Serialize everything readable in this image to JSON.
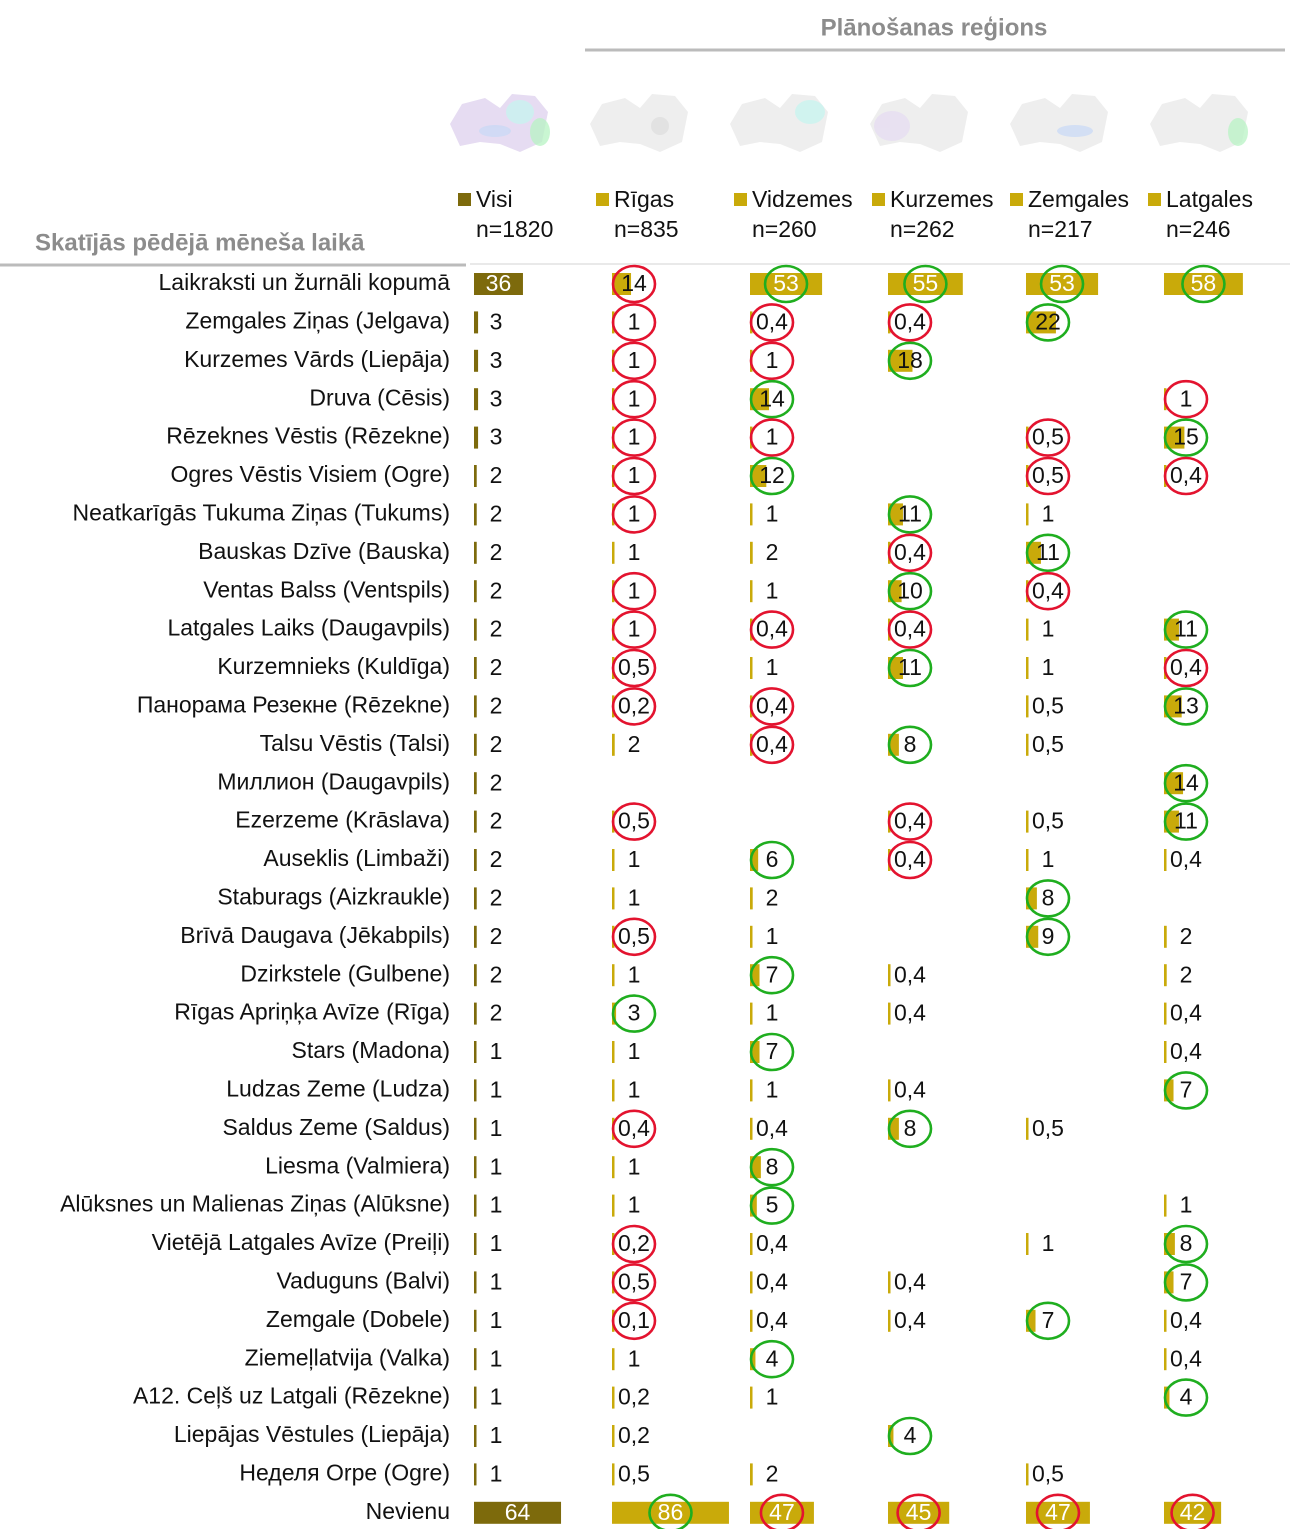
{
  "chart_data": {
    "type": "bar-table",
    "title": "Plānošanas reģions",
    "row_header": "Skatījās pēdējā mēneša laikā",
    "categories": [
      "Laikraksti un žurnāli kopumā",
      "Zemgales Ziņas (Jelgava)",
      "Kurzemes Vārds (Liepāja)",
      "Druva (Cēsis)",
      "Rēzeknes Vēstis (Rēzekne)",
      "Ogres Vēstis Visiem (Ogre)",
      "Neatkarīgās Tukuma Ziņas (Tukums)",
      "Bauskas Dzīve (Bauska)",
      "Ventas Balss (Ventspils)",
      "Latgales Laiks (Daugavpils)",
      "Kurzemnieks (Kuldīga)",
      "Панорама Резекне (Rēzekne)",
      "Talsu Vēstis (Talsi)",
      "Миллион (Daugavpils)",
      "Ezerzeme (Krāslava)",
      "Auseklis (Limbaži)",
      "Staburags (Aizkraukle)",
      "Brīvā Daugava (Jēkabpils)",
      "Dzirkstele (Gulbene)",
      "Rīgas Apriņķa Avīze (Rīga)",
      "Stars (Madona)",
      "Ludzas Zeme (Ludza)",
      "Saldus Zeme (Saldus)",
      "Liesma (Valmiera)",
      "Alūksnes un Malienas Ziņas (Alūksne)",
      "Vietējā Latgales Avīze (Preiļi)",
      "Vaduguns (Balvi)",
      "Zemgale (Dobele)",
      "Ziemeļlatvija (Valka)",
      "A12. Ceļš uz Latgali (Rēzekne)",
      "Liepājas Vēstules (Liepāja)",
      "Неделя Orpe (Ogre)",
      "Nevienu"
    ],
    "significance_colors": {
      "up": "#1fae1f",
      "down": "#e3132f"
    },
    "series": [
      {
        "name": "Visi",
        "n_label": "n=1820",
        "color": "#7d6a0c",
        "values": [
          36,
          3,
          3,
          3,
          3,
          2,
          2,
          2,
          2,
          2,
          2,
          2,
          2,
          2,
          2,
          2,
          2,
          2,
          2,
          2,
          1,
          1,
          1,
          1,
          1,
          1,
          1,
          1,
          1,
          1,
          1,
          1,
          64
        ],
        "value_labels": [
          "36",
          "3",
          "3",
          "3",
          "3",
          "2",
          "2",
          "2",
          "2",
          "2",
          "2",
          "2",
          "2",
          "2",
          "2",
          "2",
          "2",
          "2",
          "2",
          "2",
          "1",
          "1",
          "1",
          "1",
          "1",
          "1",
          "1",
          "1",
          "1",
          "1",
          "1",
          "1",
          "64"
        ]
      },
      {
        "name": "Rīgas",
        "n_label": "n=835",
        "color": "#c9aa0a",
        "values": [
          14,
          1,
          1,
          1,
          1,
          1,
          1,
          1,
          1,
          1,
          0.5,
          0.2,
          2,
          null,
          0.5,
          1,
          1,
          0.5,
          1,
          3,
          1,
          1,
          0.4,
          1,
          1,
          0.2,
          0.5,
          0.1,
          1,
          0.2,
          0.2,
          0.5,
          86
        ],
        "value_labels": [
          "14",
          "1",
          "1",
          "1",
          "1",
          "1",
          "1",
          "1",
          "1",
          "1",
          "0,5",
          "0,2",
          "2",
          null,
          "0,5",
          "1",
          "1",
          "0,5",
          "1",
          "3",
          "1",
          "1",
          "0,4",
          "1",
          "1",
          "0,2",
          "0,5",
          "0,1",
          "1",
          "0,2",
          "0,2",
          "0,5",
          "86"
        ],
        "significance": [
          "down",
          "down",
          "down",
          "down",
          "down",
          "down",
          "down",
          null,
          "down",
          "down",
          "down",
          "down",
          null,
          null,
          "down",
          null,
          null,
          "down",
          null,
          "up",
          null,
          null,
          "down",
          null,
          null,
          "down",
          "down",
          "down",
          null,
          null,
          null,
          null,
          "up"
        ]
      },
      {
        "name": "Vidzemes",
        "n_label": "n=260",
        "color": "#c9aa0a",
        "values": [
          53,
          0.4,
          1,
          14,
          1,
          12,
          1,
          2,
          1,
          0.4,
          1,
          0.4,
          0.4,
          null,
          null,
          6,
          2,
          1,
          7,
          1,
          7,
          1,
          0.4,
          8,
          5,
          0.4,
          0.4,
          0.4,
          4,
          1,
          null,
          2,
          47
        ],
        "value_labels": [
          "53",
          "0,4",
          "1",
          "14",
          "1",
          "12",
          "1",
          "2",
          "1",
          "0,4",
          "1",
          "0,4",
          "0,4",
          null,
          null,
          "6",
          "2",
          "1",
          "7",
          "1",
          "7",
          "1",
          "0,4",
          "8",
          "5",
          "0,4",
          "0,4",
          "0,4",
          "4",
          "1",
          null,
          "2",
          "47"
        ],
        "significance": [
          "up",
          "down",
          "down",
          "up",
          "down",
          "up",
          null,
          null,
          null,
          "down",
          null,
          "down",
          "down",
          null,
          null,
          "up",
          null,
          null,
          "up",
          null,
          "up",
          null,
          null,
          "up",
          "up",
          null,
          null,
          null,
          "up",
          null,
          null,
          null,
          "down"
        ]
      },
      {
        "name": "Kurzemes",
        "n_label": "n=262",
        "color": "#c9aa0a",
        "values": [
          55,
          0.4,
          18,
          null,
          null,
          null,
          11,
          0.4,
          10,
          0.4,
          11,
          null,
          8,
          null,
          0.4,
          0.4,
          null,
          null,
          0.4,
          0.4,
          null,
          0.4,
          8,
          null,
          null,
          null,
          0.4,
          0.4,
          null,
          null,
          4,
          null,
          45
        ],
        "value_labels": [
          "55",
          "0,4",
          "18",
          null,
          null,
          null,
          "11",
          "0,4",
          "10",
          "0,4",
          "11",
          null,
          "8",
          null,
          "0,4",
          "0,4",
          null,
          null,
          "0,4",
          "0,4",
          null,
          "0,4",
          "8",
          null,
          null,
          null,
          "0,4",
          "0,4",
          null,
          null,
          "4",
          null,
          "45"
        ],
        "significance": [
          "up",
          "down",
          "up",
          null,
          null,
          null,
          "up",
          "down",
          "up",
          "down",
          "up",
          null,
          "up",
          null,
          "down",
          "down",
          null,
          null,
          null,
          null,
          null,
          null,
          "up",
          null,
          null,
          null,
          null,
          null,
          null,
          null,
          "up",
          null,
          "down"
        ]
      },
      {
        "name": "Zemgales",
        "n_label": "n=217",
        "color": "#c9aa0a",
        "values": [
          53,
          22,
          null,
          null,
          0.5,
          0.5,
          1,
          11,
          0.4,
          1,
          1,
          0.5,
          0.5,
          null,
          0.5,
          1,
          8,
          9,
          null,
          null,
          null,
          null,
          0.5,
          null,
          null,
          1,
          null,
          7,
          null,
          null,
          null,
          0.5,
          47
        ],
        "value_labels": [
          "53",
          "22",
          null,
          null,
          "0,5",
          "0,5",
          "1",
          "11",
          "0,4",
          "1",
          "1",
          "0,5",
          "0,5",
          null,
          "0,5",
          "1",
          "8",
          "9",
          null,
          null,
          null,
          null,
          "0,5",
          null,
          null,
          "1",
          null,
          "7",
          null,
          null,
          null,
          "0,5",
          "47"
        ],
        "significance": [
          "up",
          "up",
          null,
          null,
          "down",
          "down",
          null,
          "up",
          "down",
          null,
          null,
          null,
          null,
          null,
          null,
          null,
          "up",
          "up",
          null,
          null,
          null,
          null,
          null,
          null,
          null,
          null,
          null,
          "up",
          null,
          null,
          null,
          null,
          "down"
        ]
      },
      {
        "name": "Latgales",
        "n_label": "n=246",
        "color": "#c9aa0a",
        "values": [
          58,
          null,
          null,
          1,
          15,
          0.4,
          null,
          null,
          null,
          11,
          0.4,
          13,
          null,
          14,
          11,
          0.4,
          null,
          2,
          2,
          0.4,
          0.4,
          7,
          null,
          null,
          1,
          8,
          7,
          0.4,
          0.4,
          4,
          null,
          null,
          42
        ],
        "value_labels": [
          "58",
          null,
          null,
          "1",
          "15",
          "0,4",
          null,
          null,
          null,
          "11",
          "0,4",
          "13",
          null,
          "14",
          "11",
          "0,4",
          null,
          "2",
          "2",
          "0,4",
          "0,4",
          "7",
          null,
          null,
          "1",
          "8",
          "7",
          "0,4",
          "0,4",
          "4",
          null,
          null,
          "42"
        ],
        "significance": [
          "up",
          null,
          null,
          "down",
          "up",
          "down",
          null,
          null,
          null,
          "up",
          "down",
          "up",
          null,
          "up",
          "up",
          null,
          null,
          null,
          null,
          null,
          null,
          "up",
          null,
          null,
          null,
          "up",
          "up",
          null,
          null,
          "up",
          null,
          null,
          "down"
        ]
      }
    ]
  }
}
